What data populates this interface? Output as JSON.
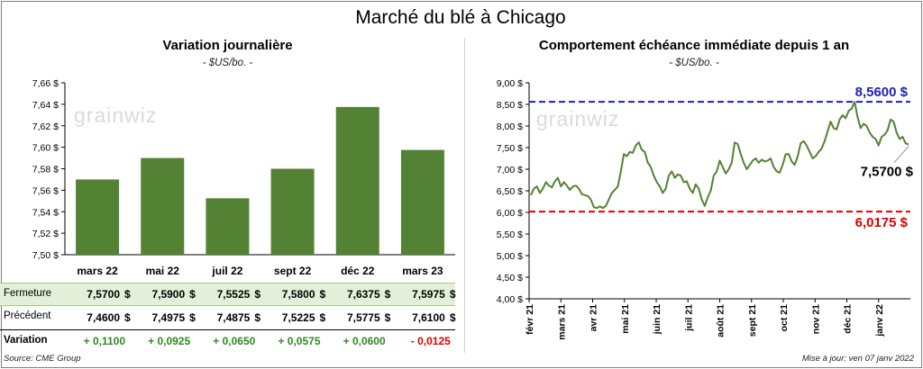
{
  "title": "Marché du blé à Chicago",
  "source": "Source: CME Group",
  "updated": "Mise à jour: ven 07 janv 2022",
  "watermark": "grainwiz",
  "colors": {
    "bar": "#548235",
    "line": "#548235",
    "max_line": "#1f1fb4",
    "min_line": "#e00000",
    "positive": "#2e8b20",
    "negative": "#e00000"
  },
  "left_panel": {
    "subtitle": "Variation  journalière",
    "unit": "- $US/bo. -",
    "table": {
      "label_close": "Fermeture",
      "label_prev": "Précédent",
      "label_var": "Variation",
      "currency": "$",
      "close": [
        "7,5700",
        "7,5900",
        "7,5525",
        "7,5800",
        "7,6375",
        "7,5975"
      ],
      "prev": [
        "7,4600",
        "7,4975",
        "7,4875",
        "7,5225",
        "7,5775",
        "7,6100"
      ],
      "var": [
        "+ 0,1100",
        "+ 0,0925",
        "+ 0,0650",
        "+ 0,0575",
        "+ 0,0600",
        "- 0,0125"
      ]
    }
  },
  "right_panel": {
    "subtitle": "Comportement  échéance immédiate depuis 1 an",
    "unit": "- $US/bo. -",
    "max_label": "8,5600 $",
    "min_label": "6,0175 $",
    "last_label": "7,5700 $"
  },
  "chart_data": [
    {
      "type": "bar",
      "categories": [
        "mars 22",
        "mai 22",
        "juil 22",
        "sept 22",
        "déc 22",
        "mars 23"
      ],
      "values": [
        7.57,
        7.59,
        7.5525,
        7.58,
        7.6375,
        7.5975
      ],
      "ylim": [
        7.5,
        7.66
      ],
      "yticks": [
        7.5,
        7.52,
        7.54,
        7.56,
        7.58,
        7.6,
        7.62,
        7.64,
        7.66
      ],
      "ytick_labels": [
        "7,50 $",
        "7,52 $",
        "7,54 $",
        "7,56 $",
        "7,58 $",
        "7,60 $",
        "7,62 $",
        "7,64 $",
        "7,66 $"
      ],
      "grid": false
    },
    {
      "type": "line",
      "xtick_labels": [
        "févr 21",
        "mars 21",
        "avr 21",
        "mai 21",
        "juin 21",
        "juil 21",
        "août 21",
        "sept 21",
        "oct 21",
        "nov 21",
        "déc 21",
        "janv 22"
      ],
      "ylim": [
        4.0,
        9.0
      ],
      "yticks": [
        4,
        4.5,
        5,
        5.5,
        6,
        6.5,
        7,
        7.5,
        8,
        8.5,
        9
      ],
      "ytick_labels": [
        "4,00 $",
        "4,50 $",
        "5,00 $",
        "5,50 $",
        "6,00 $",
        "6,50 $",
        "7,00 $",
        "7,50 $",
        "8,00 $",
        "8,50 $",
        "9,00 $"
      ],
      "max": 8.56,
      "min": 6.0175,
      "last": 7.57,
      "values": [
        6.4,
        6.55,
        6.6,
        6.45,
        6.55,
        6.7,
        6.62,
        6.58,
        6.72,
        6.8,
        6.6,
        6.7,
        6.62,
        6.52,
        6.6,
        6.62,
        6.55,
        6.42,
        6.4,
        6.38,
        6.3,
        6.12,
        6.1,
        6.14,
        6.1,
        6.15,
        6.3,
        6.45,
        6.52,
        6.6,
        6.95,
        7.35,
        7.3,
        7.4,
        7.38,
        7.55,
        7.62,
        7.45,
        7.4,
        7.15,
        7.05,
        6.85,
        6.7,
        6.6,
        6.45,
        6.55,
        6.85,
        6.95,
        6.8,
        6.88,
        6.85,
        6.7,
        6.72,
        6.55,
        6.45,
        6.65,
        6.55,
        6.3,
        6.15,
        6.35,
        6.5,
        6.85,
        6.95,
        7.2,
        7.05,
        6.9,
        7.0,
        7.15,
        7.62,
        7.58,
        7.35,
        7.15,
        7.0,
        7.1,
        7.2,
        7.25,
        7.15,
        7.22,
        7.18,
        7.2,
        7.25,
        7.05,
        6.95,
        6.92,
        7.1,
        7.35,
        7.35,
        7.18,
        7.1,
        7.3,
        7.6,
        7.65,
        7.55,
        7.4,
        7.25,
        7.3,
        7.4,
        7.48,
        7.65,
        7.88,
        8.1,
        7.95,
        7.92,
        8.15,
        8.25,
        8.18,
        8.35,
        8.4,
        8.56,
        8.2,
        7.95,
        8.05,
        8.0,
        7.85,
        7.75,
        7.7,
        7.55,
        7.75,
        7.8,
        7.9,
        8.15,
        8.1,
        7.85,
        7.7,
        7.75,
        7.6,
        7.57
      ]
    }
  ]
}
